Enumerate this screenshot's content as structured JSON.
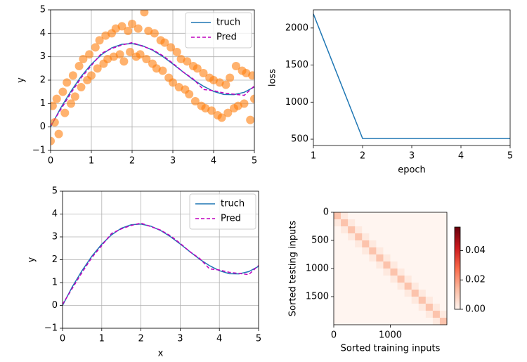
{
  "chart_data": [
    {
      "type": "scatter",
      "ylabel": "y",
      "xlim": [
        0,
        5
      ],
      "ylim": [
        -1,
        5
      ],
      "xticks": [
        0,
        1,
        2,
        3,
        4,
        5
      ],
      "yticks": [
        {
          "value": -1,
          "label": "−1"
        },
        0,
        1,
        2,
        3,
        4,
        5
      ],
      "grid": true,
      "legend": "upper right",
      "points": {
        "color": "#ff7f0e",
        "x": [
          0,
          0.05,
          0.1,
          0.15,
          0.2,
          0.3,
          0.35,
          0.4,
          0.5,
          0.55,
          0.6,
          0.7,
          0.75,
          0.8,
          0.9,
          0.95,
          1,
          1.1,
          1.15,
          1.2,
          1.3,
          1.35,
          1.4,
          1.5,
          1.55,
          1.6,
          1.7,
          1.75,
          1.8,
          1.9,
          1.95,
          2,
          2.1,
          2.15,
          2.2,
          2.3,
          2.35,
          2.4,
          2.5,
          2.55,
          2.6,
          2.7,
          2.75,
          2.8,
          2.9,
          2.95,
          3,
          3.1,
          3.15,
          3.2,
          3.3,
          3.35,
          3.4,
          3.5,
          3.55,
          3.6,
          3.7,
          3.75,
          3.8,
          3.9,
          3.95,
          4,
          4.1,
          4.15,
          4.2,
          4.3,
          4.35,
          4.4,
          4.5,
          4.55,
          4.6,
          4.7,
          4.75,
          4.8,
          4.9,
          4.95,
          5
        ],
        "y": [
          -0.6,
          0.9,
          0.2,
          1.2,
          -0.3,
          1.5,
          0.6,
          1.9,
          1.0,
          2.2,
          1.3,
          2.6,
          1.7,
          2.9,
          2.0,
          3.1,
          2.2,
          3.4,
          2.5,
          3.7,
          2.7,
          3.9,
          2.9,
          4.0,
          3.0,
          4.2,
          3.1,
          4.3,
          2.8,
          4.1,
          3.2,
          4.4,
          3.0,
          4.2,
          3.1,
          4.9,
          2.9,
          4.1,
          2.7,
          4.0,
          2.5,
          3.7,
          2.4,
          3.6,
          2.1,
          3.4,
          1.9,
          3.2,
          1.7,
          2.9,
          1.6,
          2.8,
          1.4,
          2.6,
          1.1,
          2.5,
          0.9,
          2.3,
          0.8,
          2.1,
          0.7,
          2.0,
          0.5,
          1.9,
          0.4,
          1.8,
          0.6,
          2.1,
          0.8,
          2.6,
          0.9,
          2.4,
          1.0,
          2.3,
          0.3,
          2.2,
          1.2
        ]
      },
      "x": [
        0,
        0.25,
        0.5,
        0.75,
        1,
        1.25,
        1.5,
        1.75,
        2,
        2.25,
        2.5,
        2.75,
        3,
        3.25,
        3.5,
        3.75,
        4,
        4.25,
        4.5,
        4.75,
        5
      ],
      "series": [
        {
          "name": "truch",
          "color": "#1f77b4",
          "linestyle": "solid",
          "values": [
            0,
            0.82,
            1.53,
            2.16,
            2.68,
            3.09,
            3.38,
            3.53,
            3.56,
            3.47,
            3.28,
            3.01,
            2.69,
            2.35,
            2.02,
            1.74,
            1.52,
            1.39,
            1.38,
            1.48,
            1.71
          ]
        },
        {
          "name": "Pred",
          "color": "#bf00bf",
          "linestyle": "dashed",
          "values": [
            0.05,
            0.75,
            1.45,
            2.1,
            2.62,
            3.15,
            3.35,
            3.5,
            3.6,
            3.45,
            3.3,
            3.05,
            2.72,
            2.35,
            2.05,
            1.6,
            1.55,
            1.45,
            1.4,
            1.35,
            1.75
          ]
        }
      ]
    },
    {
      "type": "line",
      "xlabel": "epoch",
      "ylabel": "loss",
      "xlim": [
        1,
        5
      ],
      "ylim": [
        415,
        2245
      ],
      "xticks": [
        1,
        2,
        3,
        4,
        5
      ],
      "yticks": [
        500,
        1000,
        1500,
        2000
      ],
      "grid": false,
      "x": [
        1,
        2,
        3,
        4,
        5
      ],
      "series": [
        {
          "color": "#1f77b4",
          "linestyle": "solid",
          "values": [
            2190,
            510,
            510,
            510,
            510
          ]
        }
      ]
    },
    {
      "type": "line",
      "xlabel": "x",
      "ylabel": "y",
      "xlim": [
        0,
        5
      ],
      "ylim": [
        -1,
        5
      ],
      "xticks": [
        0,
        1,
        2,
        3,
        4,
        5
      ],
      "yticks": [
        {
          "value": -1,
          "label": "−1"
        },
        0,
        1,
        2,
        3,
        4,
        5
      ],
      "grid": true,
      "legend": "upper right",
      "x": [
        0,
        0.25,
        0.5,
        0.75,
        1,
        1.25,
        1.5,
        1.75,
        2,
        2.25,
        2.5,
        2.75,
        3,
        3.25,
        3.5,
        3.75,
        4,
        4.25,
        4.5,
        4.75,
        5
      ],
      "series": [
        {
          "name": "truch",
          "color": "#1f77b4",
          "linestyle": "solid",
          "values": [
            0,
            0.82,
            1.53,
            2.16,
            2.68,
            3.09,
            3.38,
            3.53,
            3.56,
            3.47,
            3.28,
            3.01,
            2.69,
            2.35,
            2.02,
            1.74,
            1.52,
            1.39,
            1.38,
            1.48,
            1.71
          ]
        },
        {
          "name": "Pred",
          "color": "#bf00bf",
          "linestyle": "dashed",
          "values": [
            0.05,
            0.75,
            1.45,
            2.1,
            2.62,
            3.15,
            3.35,
            3.5,
            3.6,
            3.45,
            3.3,
            3.05,
            2.72,
            2.35,
            2.05,
            1.6,
            1.55,
            1.45,
            1.4,
            1.35,
            1.75
          ]
        }
      ]
    },
    {
      "type": "heatmap",
      "xlabel": "Sorted training inputs",
      "ylabel": "Sorted testing inputs",
      "cmap": "Reds",
      "xlim": [
        0,
        2000
      ],
      "ylim": [
        2000,
        0
      ],
      "xticks": [
        0,
        1000
      ],
      "yticks": [
        0,
        500,
        1000,
        1500
      ],
      "colorbar": {
        "vlim": [
          0,
          0.056
        ],
        "ticks": [
          {
            "value": 0,
            "label": "0.00"
          },
          {
            "value": 0.02,
            "label": "0.02"
          },
          {
            "value": 0.04,
            "label": "0.04"
          }
        ]
      },
      "matrix": [
        [
          0.012,
          0.003,
          0,
          0,
          0,
          0,
          0,
          0,
          0,
          0,
          0,
          0,
          0,
          0,
          0,
          0
        ],
        [
          0.003,
          0.012,
          0.003,
          0,
          0,
          0,
          0,
          0,
          0,
          0,
          0,
          0,
          0,
          0,
          0,
          0
        ],
        [
          0,
          0.003,
          0.012,
          0.003,
          0,
          0,
          0,
          0,
          0,
          0,
          0,
          0,
          0,
          0,
          0,
          0
        ],
        [
          0,
          0,
          0.003,
          0.012,
          0.003,
          0,
          0,
          0,
          0,
          0,
          0,
          0,
          0,
          0,
          0,
          0
        ],
        [
          0,
          0,
          0,
          0.003,
          0.012,
          0.003,
          0,
          0,
          0,
          0,
          0,
          0,
          0,
          0,
          0,
          0
        ],
        [
          0,
          0,
          0,
          0,
          0.003,
          0.012,
          0.003,
          0,
          0,
          0,
          0,
          0,
          0,
          0,
          0,
          0
        ],
        [
          0,
          0,
          0,
          0,
          0,
          0.003,
          0.012,
          0.003,
          0,
          0,
          0,
          0,
          0,
          0,
          0,
          0
        ],
        [
          0,
          0,
          0,
          0,
          0,
          0,
          0.003,
          0.012,
          0.003,
          0,
          0,
          0,
          0,
          0,
          0,
          0
        ],
        [
          0,
          0,
          0,
          0,
          0,
          0,
          0,
          0.003,
          0.012,
          0.003,
          0,
          0,
          0,
          0,
          0,
          0
        ],
        [
          0,
          0,
          0,
          0,
          0,
          0,
          0,
          0,
          0.003,
          0.012,
          0.003,
          0,
          0,
          0,
          0,
          0
        ],
        [
          0,
          0,
          0,
          0,
          0,
          0,
          0,
          0,
          0,
          0.003,
          0.012,
          0.003,
          0,
          0,
          0,
          0
        ],
        [
          0,
          0,
          0,
          0,
          0,
          0,
          0,
          0,
          0,
          0,
          0.003,
          0.012,
          0.003,
          0,
          0,
          0
        ],
        [
          0,
          0,
          0,
          0,
          0,
          0,
          0,
          0,
          0,
          0,
          0,
          0.003,
          0.012,
          0.003,
          0,
          0
        ],
        [
          0,
          0,
          0,
          0,
          0,
          0,
          0,
          0,
          0,
          0,
          0,
          0,
          0.003,
          0.012,
          0.003,
          0
        ],
        [
          0,
          0,
          0,
          0,
          0,
          0,
          0,
          0,
          0,
          0,
          0,
          0,
          0,
          0.003,
          0.012,
          0.003
        ],
        [
          0,
          0,
          0,
          0,
          0,
          0,
          0,
          0,
          0,
          0,
          0,
          0,
          0,
          0,
          0.003,
          0.012
        ]
      ]
    }
  ]
}
